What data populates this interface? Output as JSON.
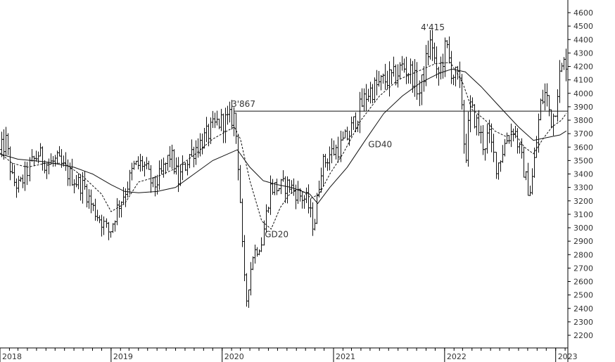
{
  "chart_data": {
    "type": "ohlc",
    "title": "",
    "xlabel": "",
    "ylabel": "",
    "ylim": [
      2150,
      4650
    ],
    "x_range": [
      "2018-01-01",
      "2023-02-10"
    ],
    "grid": false,
    "legend": "none",
    "y_ticks": [
      2200,
      2300,
      2400,
      2500,
      2600,
      2700,
      2800,
      2900,
      3000,
      3100,
      3200,
      3300,
      3400,
      3500,
      3600,
      3700,
      3800,
      3900,
      4000,
      4100,
      4200,
      4300,
      4400,
      4500,
      4600
    ],
    "y_tick_labels": [
      "2200",
      "2300",
      "2400",
      "2500",
      "2600",
      "2700",
      "2800",
      "2900",
      "3000",
      "3100",
      "3200",
      "3300",
      "3400",
      "3500",
      "3600",
      "3700",
      "3800",
      "3900",
      "4000",
      "4100",
      "4200",
      "4300",
      "4400",
      "4500",
      "4600"
    ],
    "x_ticks": [
      {
        "date": "2018-01-01",
        "label": "2018"
      },
      {
        "date": "2019-01-01",
        "label": "2019"
      },
      {
        "date": "2020-01-01",
        "label": "2020"
      },
      {
        "date": "2021-01-01",
        "label": "2021"
      },
      {
        "date": "2022-01-01",
        "label": "2022"
      },
      {
        "date": "2023-01-01",
        "label": "2023"
      }
    ],
    "price_path": [
      [
        "2017-12-30",
        3560
      ],
      [
        "2018-01-20",
        3640
      ],
      [
        "2018-02-10",
        3360
      ],
      [
        "2018-03-05",
        3300
      ],
      [
        "2018-04-05",
        3450
      ],
      [
        "2018-05-05",
        3550
      ],
      [
        "2018-06-05",
        3470
      ],
      [
        "2018-07-05",
        3500
      ],
      [
        "2018-08-05",
        3420
      ],
      [
        "2018-09-05",
        3350
      ],
      [
        "2018-10-05",
        3300
      ],
      [
        "2018-11-01",
        3150
      ],
      [
        "2018-12-01",
        3050
      ],
      [
        "2018-12-25",
        2960
      ],
      [
        "2019-01-20",
        3150
      ],
      [
        "2019-02-20",
        3300
      ],
      [
        "2019-03-15",
        3450
      ],
      [
        "2019-04-15",
        3480
      ],
      [
        "2019-05-20",
        3300
      ],
      [
        "2019-06-15",
        3400
      ],
      [
        "2019-07-15",
        3550
      ],
      [
        "2019-08-10",
        3350
      ],
      [
        "2019-09-15",
        3550
      ],
      [
        "2019-10-15",
        3620
      ],
      [
        "2019-11-15",
        3700
      ],
      [
        "2019-12-15",
        3780
      ],
      [
        "2020-01-20",
        3800
      ],
      [
        "2020-02-10",
        3830
      ],
      [
        "2020-02-25",
        3400
      ],
      [
        "2020-03-10",
        2700
      ],
      [
        "2020-03-20",
        2450
      ],
      [
        "2020-04-10",
        2800
      ],
      [
        "2020-05-10",
        2900
      ],
      [
        "2020-06-05",
        3300
      ],
      [
        "2020-07-05",
        3300
      ],
      [
        "2020-08-05",
        3320
      ],
      [
        "2020-09-05",
        3250
      ],
      [
        "2020-10-05",
        3200
      ],
      [
        "2020-10-28",
        3000
      ],
      [
        "2020-11-20",
        3450
      ],
      [
        "2020-12-20",
        3550
      ],
      [
        "2021-01-20",
        3600
      ],
      [
        "2021-02-20",
        3700
      ],
      [
        "2021-03-20",
        3850
      ],
      [
        "2021-04-20",
        4000
      ],
      [
        "2021-05-20",
        4050
      ],
      [
        "2021-06-20",
        4100
      ],
      [
        "2021-07-20",
        4120
      ],
      [
        "2021-08-15",
        4200
      ],
      [
        "2021-09-15",
        4150
      ],
      [
        "2021-10-10",
        4000
      ],
      [
        "2021-11-05",
        4300
      ],
      [
        "2021-11-18",
        4400
      ],
      [
        "2021-12-05",
        4100
      ],
      [
        "2022-01-05",
        4350
      ],
      [
        "2022-01-25",
        4150
      ],
      [
        "2022-02-15",
        4100
      ],
      [
        "2022-03-01",
        3900
      ],
      [
        "2022-03-08",
        3450
      ],
      [
        "2022-03-25",
        3900
      ],
      [
        "2022-04-20",
        3750
      ],
      [
        "2022-05-10",
        3600
      ],
      [
        "2022-05-25",
        3700
      ],
      [
        "2022-06-20",
        3450
      ],
      [
        "2022-07-20",
        3650
      ],
      [
        "2022-08-15",
        3750
      ],
      [
        "2022-09-10",
        3500
      ],
      [
        "2022-09-30",
        3300
      ],
      [
        "2022-10-10",
        3280
      ],
      [
        "2022-10-25",
        3550
      ],
      [
        "2022-11-10",
        3900
      ],
      [
        "2022-11-25",
        4000
      ],
      [
        "2022-12-05",
        3950
      ],
      [
        "2022-12-15",
        3800
      ],
      [
        "2022-12-28",
        3850
      ],
      [
        "2023-01-10",
        4100
      ],
      [
        "2023-01-25",
        4200
      ],
      [
        "2023-02-05",
        4250
      ]
    ],
    "gd20": [
      [
        "2017-12-30",
        3560
      ],
      [
        "2018-02-10",
        3480
      ],
      [
        "2018-04-01",
        3450
      ],
      [
        "2018-06-01",
        3480
      ],
      [
        "2018-08-01",
        3480
      ],
      [
        "2018-10-01",
        3380
      ],
      [
        "2018-12-01",
        3250
      ],
      [
        "2019-01-01",
        3120
      ],
      [
        "2019-02-15",
        3180
      ],
      [
        "2019-04-01",
        3340
      ],
      [
        "2019-06-01",
        3380
      ],
      [
        "2019-08-01",
        3440
      ],
      [
        "2019-10-01",
        3540
      ],
      [
        "2019-12-01",
        3660
      ],
      [
        "2020-02-10",
        3750
      ],
      [
        "2020-03-01",
        3660
      ],
      [
        "2020-04-01",
        3350
      ],
      [
        "2020-05-10",
        3050
      ],
      [
        "2020-06-10",
        2990
      ],
      [
        "2020-07-10",
        3150
      ],
      [
        "2020-08-10",
        3250
      ],
      [
        "2020-09-10",
        3290
      ],
      [
        "2020-10-20",
        3220
      ],
      [
        "2020-11-15",
        3250
      ],
      [
        "2020-12-20",
        3400
      ],
      [
        "2021-02-01",
        3550
      ],
      [
        "2021-04-01",
        3800
      ],
      [
        "2021-06-01",
        3980
      ],
      [
        "2021-08-01",
        4100
      ],
      [
        "2021-10-01",
        4160
      ],
      [
        "2021-12-01",
        4220
      ],
      [
        "2022-01-20",
        4230
      ],
      [
        "2022-03-01",
        4080
      ],
      [
        "2022-04-01",
        3880
      ],
      [
        "2022-05-15",
        3800
      ],
      [
        "2022-06-15",
        3720
      ],
      [
        "2022-07-20",
        3680
      ],
      [
        "2022-08-20",
        3700
      ],
      [
        "2022-09-20",
        3600
      ],
      [
        "2022-10-20",
        3550
      ],
      [
        "2022-11-20",
        3660
      ],
      [
        "2022-12-20",
        3750
      ],
      [
        "2023-01-20",
        3800
      ],
      [
        "2023-02-05",
        3850
      ]
    ],
    "gd40": [
      [
        "2017-12-30",
        3550
      ],
      [
        "2018-03-01",
        3510
      ],
      [
        "2018-06-01",
        3490
      ],
      [
        "2018-09-01",
        3450
      ],
      [
        "2018-11-01",
        3400
      ],
      [
        "2019-01-01",
        3320
      ],
      [
        "2019-02-15",
        3270
      ],
      [
        "2019-04-01",
        3260
      ],
      [
        "2019-06-01",
        3270
      ],
      [
        "2019-08-01",
        3300
      ],
      [
        "2019-10-01",
        3400
      ],
      [
        "2019-12-01",
        3500
      ],
      [
        "2020-02-20",
        3580
      ],
      [
        "2020-04-01",
        3450
      ],
      [
        "2020-05-15",
        3350
      ],
      [
        "2020-07-01",
        3320
      ],
      [
        "2020-08-15",
        3300
      ],
      [
        "2020-10-15",
        3250
      ],
      [
        "2020-11-10",
        3180
      ],
      [
        "2020-12-20",
        3300
      ],
      [
        "2021-02-15",
        3450
      ],
      [
        "2021-04-15",
        3650
      ],
      [
        "2021-06-15",
        3850
      ],
      [
        "2021-08-15",
        3980
      ],
      [
        "2021-10-15",
        4080
      ],
      [
        "2021-12-15",
        4150
      ],
      [
        "2022-01-25",
        4180
      ],
      [
        "2022-03-10",
        4160
      ],
      [
        "2022-05-01",
        4050
      ],
      [
        "2022-07-01",
        3900
      ],
      [
        "2022-09-01",
        3750
      ],
      [
        "2022-10-20",
        3650
      ],
      [
        "2022-12-01",
        3670
      ],
      [
        "2023-01-15",
        3690
      ],
      [
        "2023-02-05",
        3720
      ]
    ],
    "resistance_level": 3867,
    "resistance_start": "2020-02-10",
    "annotations": [
      {
        "text": "3'867",
        "x": "2020-02-01",
        "y": 3900
      },
      {
        "text": "4'415",
        "x": "2021-10-15",
        "y": 4470
      },
      {
        "text": "GD40",
        "x": "2021-04-25",
        "y": 3600
      },
      {
        "text": "GD20",
        "x": "2020-05-20",
        "y": 2930
      }
    ]
  }
}
